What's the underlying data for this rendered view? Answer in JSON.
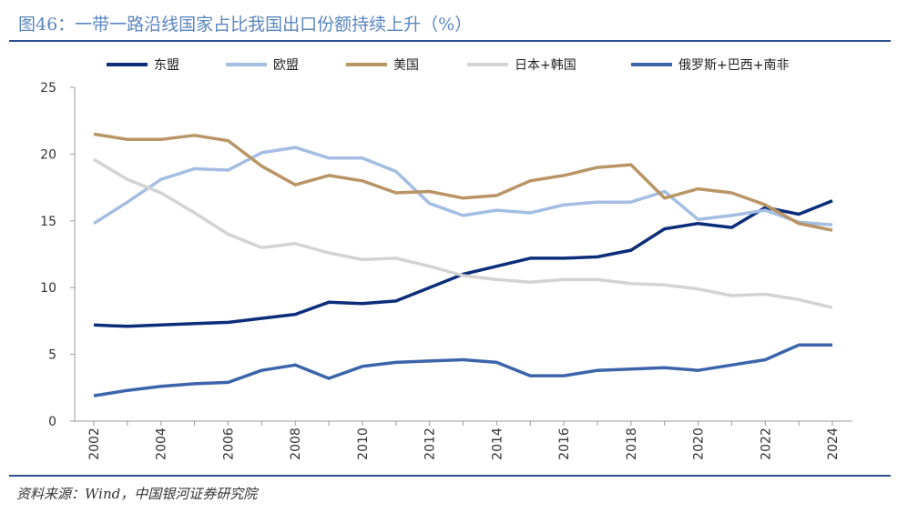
{
  "header": {
    "title": "图46：一带一路沿线国家占比我国出口份额持续上升（%）"
  },
  "footer": {
    "source": "资料来源：Wind，中国银河证券研究院"
  },
  "chart_data": {
    "type": "line",
    "title": "图46：一带一路沿线国家占比我国出口份额持续上升（%）",
    "xlabel": "",
    "ylabel": "",
    "ylim": [
      0,
      25
    ],
    "yticks": [
      0,
      5,
      10,
      15,
      20,
      25
    ],
    "ytick_labels": [
      "0",
      "5",
      "10",
      "15",
      "20",
      "25"
    ],
    "grid": false,
    "legend_position": "top",
    "x": [
      2002,
      2003,
      2004,
      2005,
      2006,
      2007,
      2008,
      2009,
      2010,
      2011,
      2012,
      2013,
      2014,
      2015,
      2016,
      2017,
      2018,
      2019,
      2020,
      2021,
      2022,
      2023,
      2024
    ],
    "xticks": [
      2002,
      2004,
      2006,
      2008,
      2010,
      2012,
      2014,
      2016,
      2018,
      2020,
      2022,
      2024
    ],
    "xtick_labels": [
      "2002",
      "2004",
      "2006",
      "2008",
      "2010",
      "2012",
      "2014",
      "2016",
      "2018",
      "2020",
      "2022",
      "2024"
    ],
    "series": [
      {
        "name": "东盟",
        "color": "#0b2d7a",
        "values": [
          7.2,
          7.1,
          7.2,
          7.3,
          7.4,
          7.7,
          8.0,
          8.9,
          8.8,
          9.0,
          10.0,
          11.0,
          11.6,
          12.2,
          12.2,
          12.3,
          12.8,
          14.4,
          14.8,
          14.5,
          16.0,
          15.5,
          16.5
        ]
      },
      {
        "name": "欧盟",
        "color": "#a3bde3",
        "values": [
          14.8,
          16.4,
          18.1,
          18.9,
          18.8,
          20.1,
          20.5,
          19.7,
          19.7,
          18.7,
          16.3,
          15.4,
          15.8,
          15.6,
          16.2,
          16.4,
          16.4,
          17.2,
          15.1,
          15.4,
          15.8,
          14.9,
          14.7
        ]
      },
      {
        "name": "美国",
        "color": "#b99566",
        "values": [
          21.5,
          21.1,
          21.1,
          21.4,
          21.0,
          19.1,
          17.7,
          18.4,
          18.0,
          17.1,
          17.2,
          16.7,
          16.9,
          18.0,
          18.4,
          19.0,
          19.2,
          16.7,
          17.4,
          17.1,
          16.2,
          14.8,
          14.3
        ]
      },
      {
        "name": "日本+韩国",
        "color": "#d3d3d3",
        "values": [
          19.6,
          18.1,
          17.1,
          15.6,
          14.0,
          13.0,
          13.3,
          12.6,
          12.1,
          12.2,
          11.6,
          10.9,
          10.6,
          10.4,
          10.6,
          10.6,
          10.3,
          10.2,
          9.9,
          9.4,
          9.5,
          9.1,
          8.5
        ]
      },
      {
        "name": "俄罗斯+巴西+南非",
        "color": "#3c64aa",
        "values": [
          1.9,
          2.3,
          2.6,
          2.8,
          2.9,
          3.8,
          4.2,
          3.2,
          4.1,
          4.4,
          4.5,
          4.6,
          4.4,
          3.4,
          3.4,
          3.8,
          3.9,
          4.0,
          3.8,
          4.2,
          4.6,
          5.7,
          5.7
        ]
      }
    ]
  }
}
